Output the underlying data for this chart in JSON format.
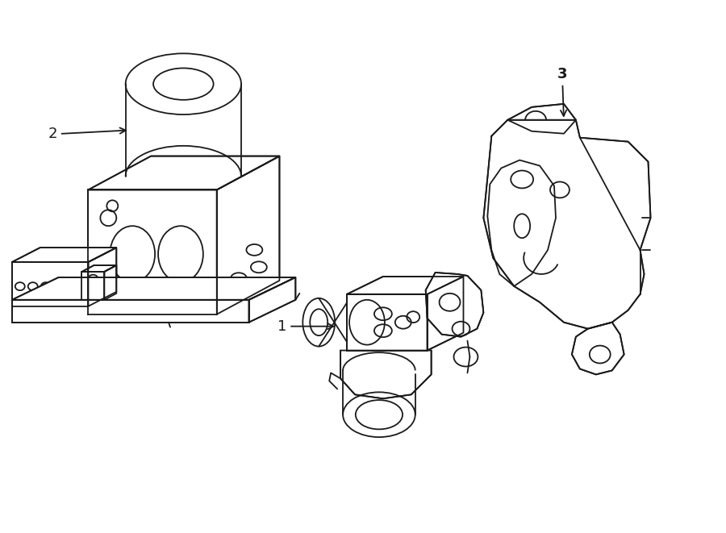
{
  "bg_color": "#ffffff",
  "line_color": "#1a1a1a",
  "line_width": 1.3,
  "label_fontsize": 13
}
